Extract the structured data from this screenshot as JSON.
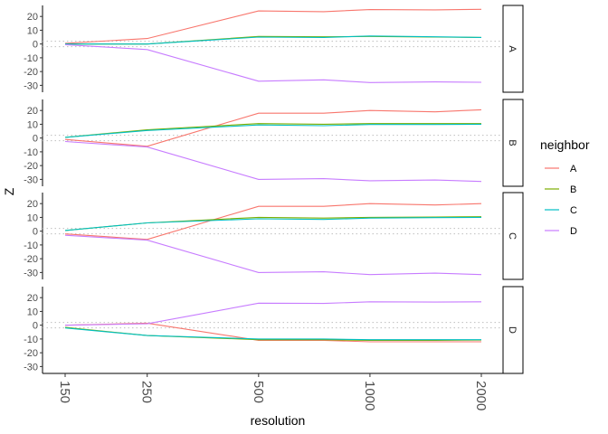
{
  "chart_data": {
    "type": "line",
    "facet_by": "neighbor",
    "xlabel": "resolution",
    "ylabel": "Z",
    "x_ticks": [
      "150",
      "250",
      "500",
      "1000",
      "2000"
    ],
    "x": [
      150,
      250,
      500,
      750,
      1000,
      1500,
      2000
    ],
    "x_scale": "log",
    "ylim": [
      -35,
      28
    ],
    "y_ticks": [
      20,
      10,
      0,
      -10,
      -20,
      -30
    ],
    "reference_lines": [
      1.96,
      -1.96
    ],
    "legend": {
      "title": "neighbor",
      "position": "right",
      "entries": [
        "A",
        "B",
        "C",
        "D"
      ]
    },
    "colors": {
      "A": "#F8766D",
      "B": "#7CAE00",
      "C": "#00BFC4",
      "D": "#C77CFF"
    },
    "facets": [
      {
        "label": "A",
        "series": [
          {
            "name": "A",
            "values": [
              0.5,
              4,
              24,
              23.5,
              25,
              24.8,
              25.2
            ]
          },
          {
            "name": "B",
            "values": [
              0,
              0,
              5.5,
              5.2,
              5.5,
              5.0,
              4.8
            ]
          },
          {
            "name": "C",
            "values": [
              0,
              0,
              5.0,
              4.8,
              5.8,
              5.2,
              4.8
            ]
          },
          {
            "name": "D",
            "values": [
              -0.5,
              -4,
              -27,
              -26,
              -28,
              -27.5,
              -27.8
            ]
          }
        ]
      },
      {
        "label": "B",
        "series": [
          {
            "name": "A",
            "values": [
              -1,
              -6,
              18,
              18,
              20,
              19,
              20.5
            ]
          },
          {
            "name": "B",
            "values": [
              0.5,
              6,
              10.5,
              10,
              10.5,
              10.5,
              10.5
            ]
          },
          {
            "name": "C",
            "values": [
              0.5,
              5.5,
              9.5,
              9,
              9.8,
              9.8,
              10
            ]
          },
          {
            "name": "D",
            "values": [
              -2.5,
              -6.5,
              -30,
              -29.5,
              -31,
              -30.5,
              -31.5
            ]
          }
        ]
      },
      {
        "label": "C",
        "series": [
          {
            "name": "A",
            "values": [
              -2,
              -6,
              18,
              18,
              20,
              19,
              20
            ]
          },
          {
            "name": "B",
            "values": [
              0.5,
              6,
              10,
              9.5,
              10,
              10.3,
              10.5
            ]
          },
          {
            "name": "C",
            "values": [
              0.5,
              6,
              9,
              8.5,
              9.5,
              9.8,
              10
            ]
          },
          {
            "name": "D",
            "values": [
              -3,
              -6.5,
              -30,
              -29.5,
              -31.5,
              -30.5,
              -31.5
            ]
          }
        ]
      },
      {
        "label": "D",
        "series": [
          {
            "name": "A",
            "values": [
              0,
              1.5,
              -11,
              -11,
              -12,
              -12,
              -12
            ]
          },
          {
            "name": "B",
            "values": [
              -1.5,
              -7.5,
              -10.5,
              -10.5,
              -11,
              -11,
              -10.8
            ]
          },
          {
            "name": "C",
            "values": [
              -2,
              -7.5,
              -10,
              -10,
              -10.5,
              -10.5,
              -10.5
            ]
          },
          {
            "name": "D",
            "values": [
              0,
              1,
              16,
              15.8,
              17,
              16.8,
              17
            ]
          }
        ]
      }
    ]
  }
}
